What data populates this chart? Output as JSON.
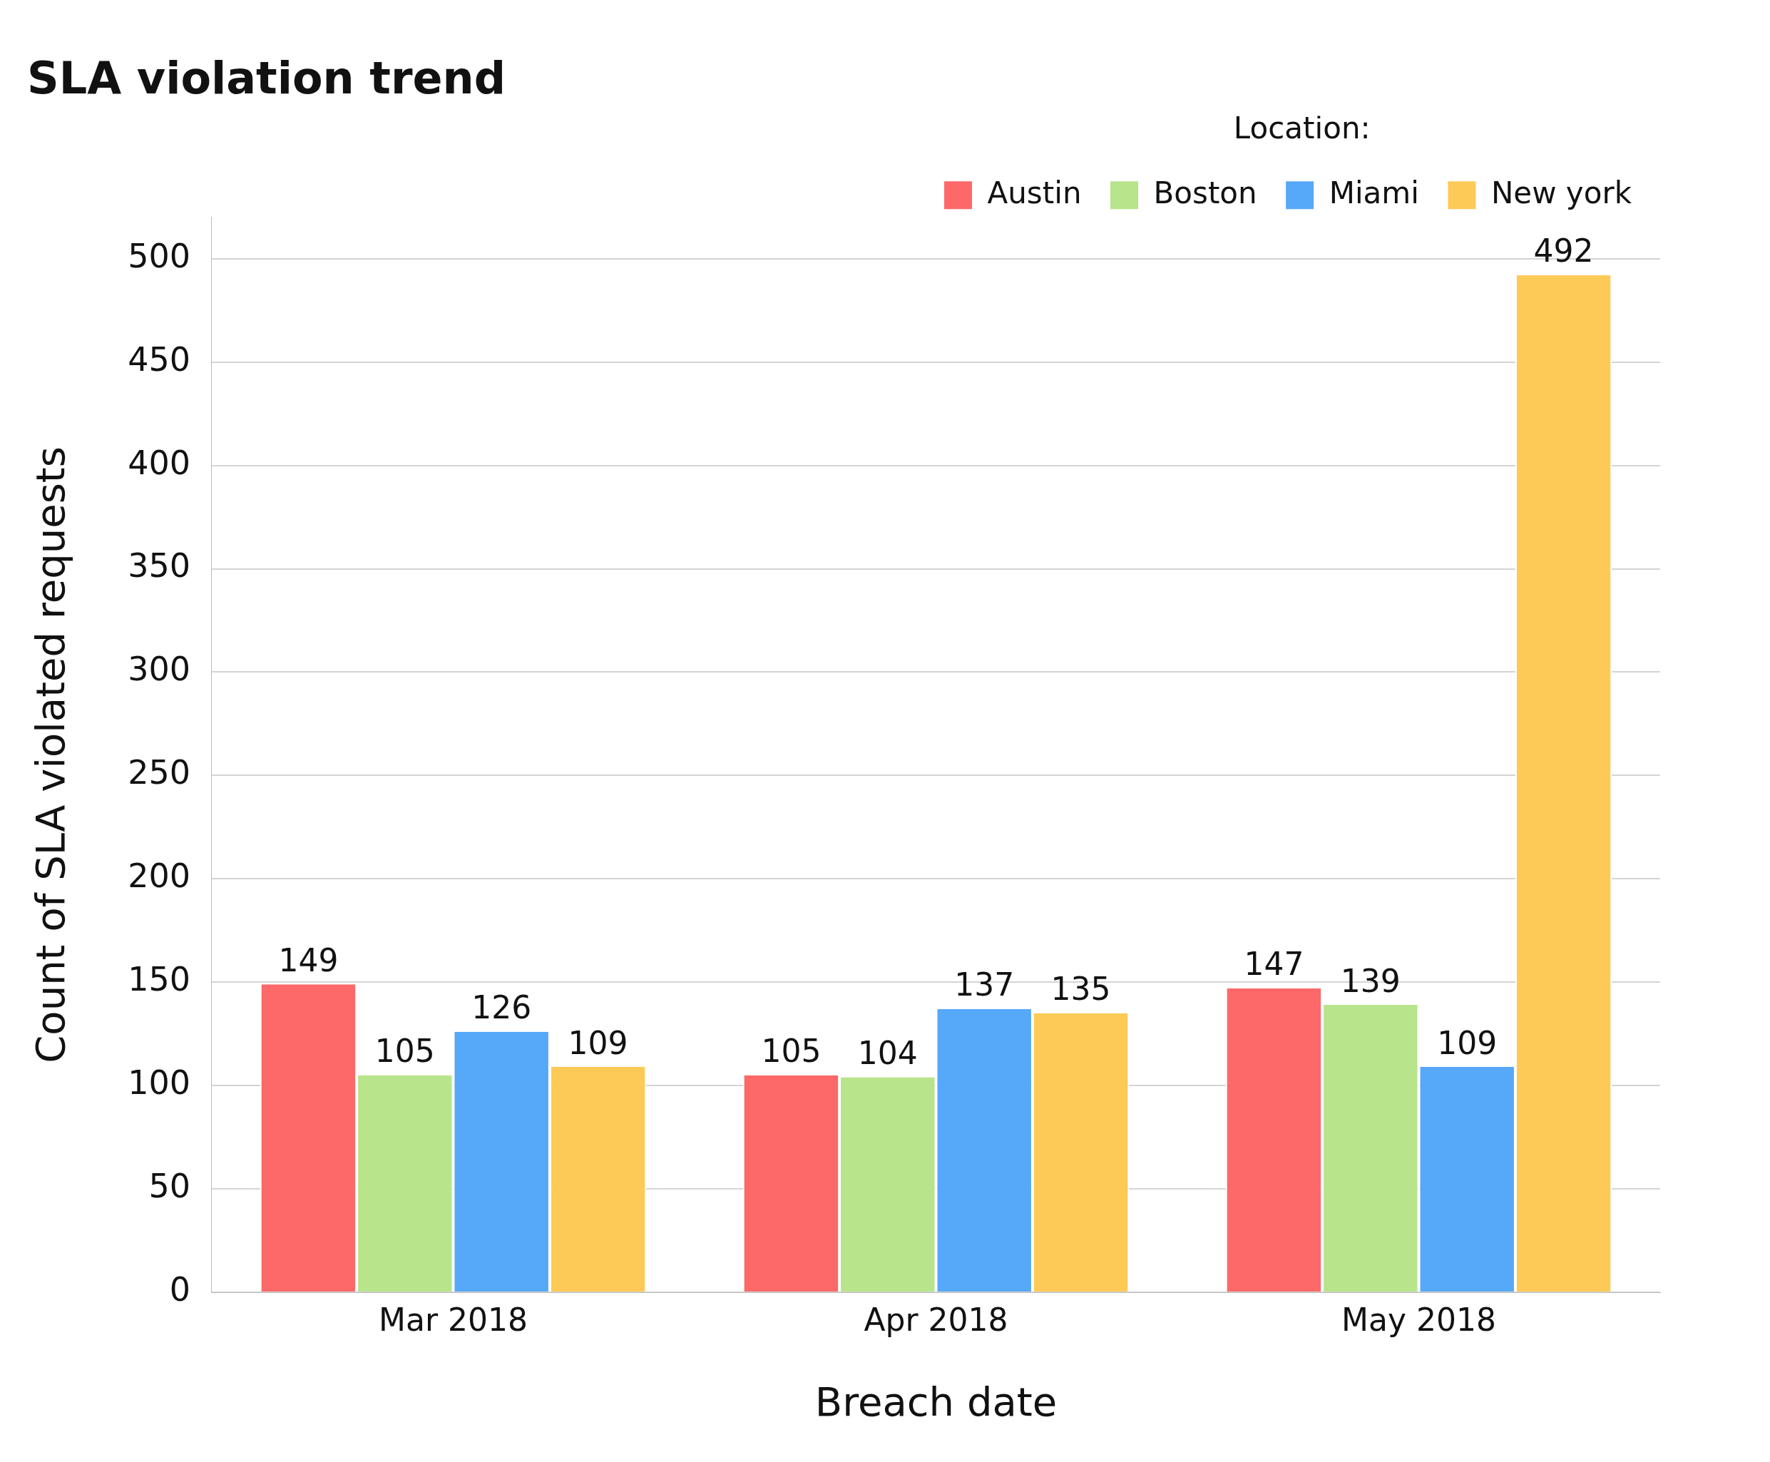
{
  "chart_data": {
    "type": "bar",
    "title": "SLA violation trend",
    "xlabel": "Breach date",
    "ylabel": "Count of SLA violated requests",
    "legend_title": "Location:",
    "categories": [
      "Mar 2018",
      "Apr 2018",
      "May 2018"
    ],
    "series": [
      {
        "name": "Austin",
        "color": "#fd6868",
        "values": [
          149,
          105,
          147
        ]
      },
      {
        "name": "Boston",
        "color": "#b8e48c",
        "values": [
          105,
          104,
          139
        ]
      },
      {
        "name": "Miami",
        "color": "#56a8f8",
        "values": [
          126,
          137,
          109
        ]
      },
      {
        "name": "New york",
        "color": "#fdca57",
        "values": [
          109,
          135,
          492
        ]
      }
    ],
    "ylim": [
      0,
      520
    ],
    "yticks": [
      0,
      50,
      100,
      150,
      200,
      250,
      300,
      350,
      400,
      450,
      500
    ],
    "grid": "y",
    "legend": "top right",
    "data_labels": true
  }
}
